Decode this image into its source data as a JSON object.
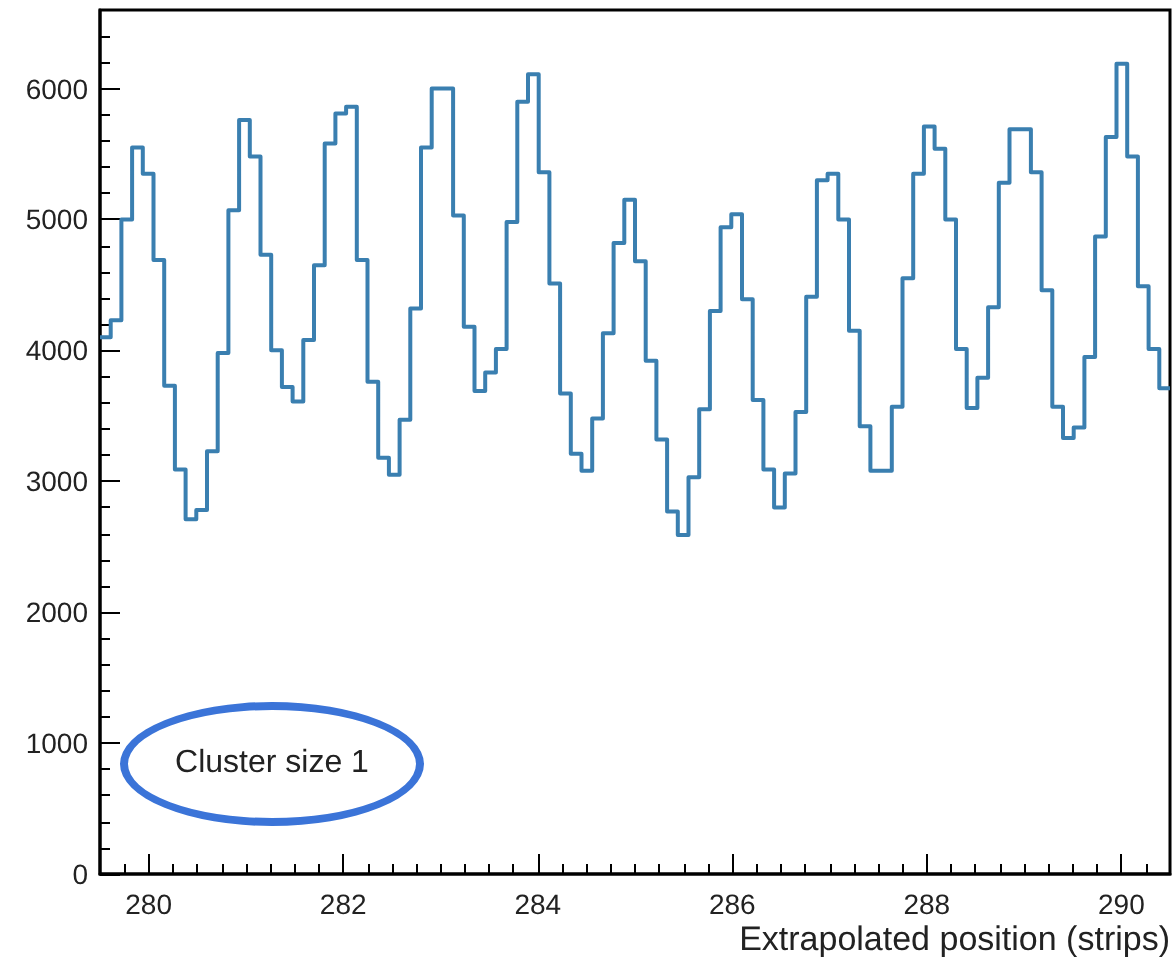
{
  "chart_data": {
    "type": "histogram",
    "xlabel": "Extrapolated position (strips)",
    "annotations": [
      "Cluster size 1"
    ],
    "color": "#3a7fb0",
    "bins": [
      279.5,
      279.61,
      279.72,
      279.83,
      279.94,
      280.05,
      280.16,
      280.27,
      280.38,
      280.49,
      280.6,
      280.71,
      280.82,
      280.93,
      281.04,
      281.15,
      281.26,
      281.37,
      281.48,
      281.59,
      281.7,
      281.81,
      281.92,
      282.03,
      282.14,
      282.25,
      282.36,
      282.47,
      282.58,
      282.69,
      282.8,
      282.91,
      283.02,
      283.13,
      283.24,
      283.35,
      283.46,
      283.57,
      283.68,
      283.79,
      283.9,
      284.01,
      284.12,
      284.23,
      284.34,
      284.45,
      284.56,
      284.67,
      284.78,
      284.89,
      285.0,
      285.11,
      285.22,
      285.33,
      285.44,
      285.55,
      285.66,
      285.77,
      285.88,
      285.99,
      286.1,
      286.21,
      286.32,
      286.43,
      286.54,
      286.65,
      286.76,
      286.87,
      286.98,
      287.09,
      287.2,
      287.31,
      287.42,
      287.53,
      287.64,
      287.75,
      287.86,
      287.97,
      288.08,
      288.19,
      288.3,
      288.41,
      288.52,
      288.63,
      288.74,
      288.85,
      288.96,
      289.07,
      289.18,
      289.29,
      289.4,
      289.51,
      289.62,
      289.73,
      289.84,
      289.95,
      290.06,
      290.17,
      290.28,
      290.39,
      290.5
    ],
    "values": [
      4100,
      4230,
      5000,
      5550,
      5350,
      4690,
      3730,
      3090,
      2710,
      2780,
      3230,
      3980,
      5070,
      5760,
      5480,
      4730,
      4000,
      3720,
      3610,
      4080,
      4650,
      5580,
      5810,
      5860,
      4690,
      3760,
      3180,
      3050,
      3470,
      4320,
      5550,
      6000,
      6000,
      5030,
      4180,
      3690,
      3830,
      4010,
      4980,
      5900,
      6110,
      5360,
      4510,
      3670,
      3210,
      3080,
      3480,
      4130,
      4820,
      5150,
      4680,
      3920,
      3320,
      2770,
      2590,
      3030,
      3550,
      4300,
      4940,
      5040,
      4390,
      3620,
      3090,
      2800,
      3060,
      3530,
      4410,
      5300,
      5350,
      5000,
      4150,
      3420,
      3080,
      3080,
      3570,
      4550,
      5350,
      5710,
      5540,
      5000,
      4010,
      3560,
      3790,
      4330,
      5280,
      5690,
      5690,
      5360,
      4460,
      3570,
      3330,
      3410,
      3950,
      4870,
      5630,
      6190,
      5480,
      4490,
      4010,
      3710
    ],
    "xlim": [
      279.5,
      290.5
    ],
    "ylim": [
      0,
      6600
    ],
    "xticks": [
      280,
      282,
      284,
      286,
      288,
      290
    ],
    "yticks": [
      0,
      1000,
      2000,
      3000,
      4000,
      5000,
      6000
    ]
  }
}
